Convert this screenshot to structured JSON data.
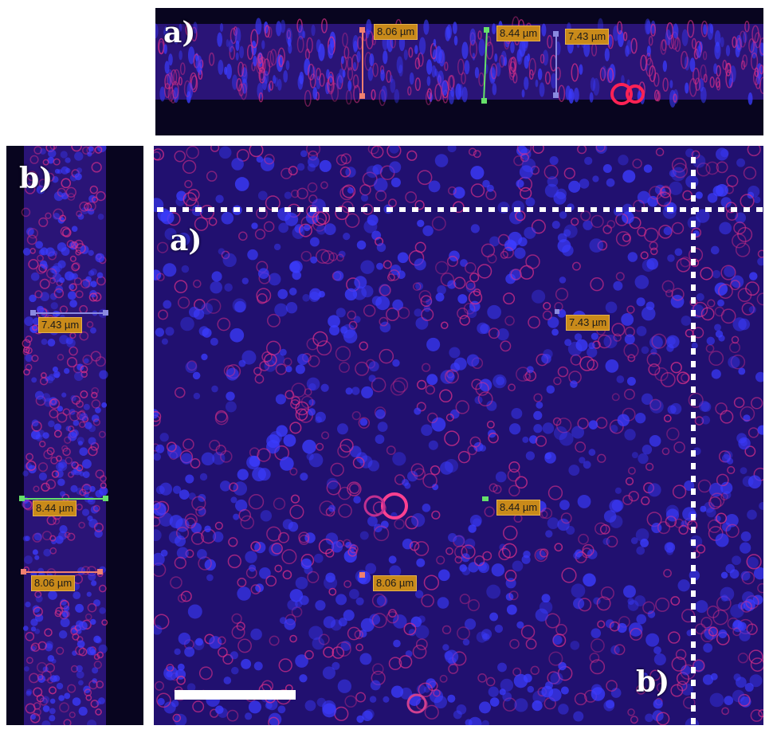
{
  "labels": {
    "top_panel": "a)",
    "side_panel": "b)",
    "main_a": "a)",
    "main_b": "b)"
  },
  "measurements": [
    {
      "id": "m1",
      "text": "8.06 µm",
      "color": "#f08070"
    },
    {
      "id": "m2",
      "text": "8.44 µm",
      "color": "#66e06a"
    },
    {
      "id": "m3",
      "text": "7.43 µm",
      "color": "#8a8ae0"
    }
  ],
  "colors": {
    "background": "#1a0a55",
    "nuclei": "#3b3cff",
    "membrane": "#e0308a",
    "label_bg": "#c98a1a"
  }
}
